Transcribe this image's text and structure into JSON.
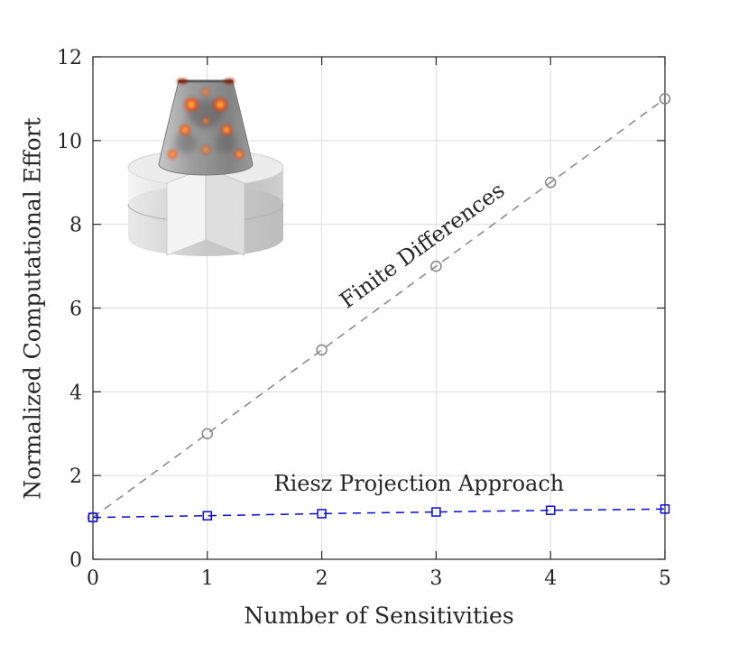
{
  "figure": {
    "background": "#ffffff",
    "axis_color": "#262626",
    "grid_color": "#dcdcdc",
    "tick_label_color": "#262626"
  },
  "chart_data": {
    "type": "line",
    "title": "",
    "xlabel": "Number of Sensitivities",
    "ylabel": "Normalized Computational Effort",
    "xlim": [
      0,
      5
    ],
    "ylim": [
      0,
      12
    ],
    "xticks": [
      0,
      1,
      2,
      3,
      4,
      5
    ],
    "yticks": [
      0,
      2,
      4,
      6,
      8,
      10,
      12
    ],
    "grid": true,
    "legend_position": "inline-annotations",
    "x": [
      0,
      1,
      2,
      3,
      4,
      5
    ],
    "series": [
      {
        "name": "Finite Differences",
        "values": [
          1,
          3,
          5,
          7,
          9,
          11
        ],
        "color": "#858585",
        "marker": "circle",
        "line_style": "dashed",
        "label": {
          "x": 2.88,
          "y": 7.5,
          "rotation_deg": -36
        }
      },
      {
        "name": "Riesz Projection Approach",
        "values": [
          1.0,
          1.04,
          1.09,
          1.13,
          1.17,
          1.2
        ],
        "color": "#0a0ae0",
        "marker": "square",
        "line_style": "dashed",
        "label": {
          "x": 2.85,
          "y": 1.82,
          "rotation_deg": 0
        }
      }
    ]
  },
  "inset": {
    "description": "3D cutaway render of conical nanostructure on layered cylinder with field hot spots"
  }
}
